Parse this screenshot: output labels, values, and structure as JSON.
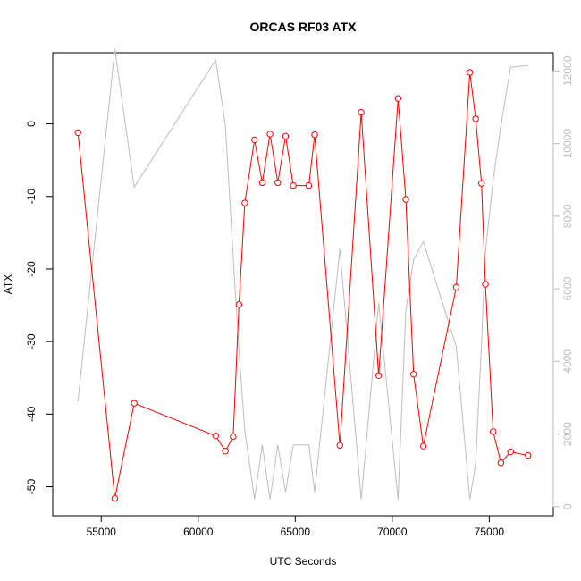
{
  "chart_data": {
    "type": "line",
    "title": "ORCAS RF03 ATX",
    "xlabel": "UTC Seconds",
    "ylabel": "ATX",
    "xlim": [
      52500,
      78300
    ],
    "ylim": [
      -54,
      9.8
    ],
    "y2lim": [
      -250,
      12500
    ],
    "xticks": [
      55000,
      60000,
      65000,
      70000,
      75000
    ],
    "yticks": [
      0,
      -10,
      -20,
      -30,
      -40,
      -50
    ],
    "y2ticks": [
      0,
      2000,
      4000,
      6000,
      8000,
      10000,
      12000
    ],
    "xtick_labels": [
      "55000",
      "60000",
      "65000",
      "70000",
      "75000"
    ],
    "ytick_labels": [
      "0",
      "-10",
      "-20",
      "-30",
      "-40",
      "-50"
    ],
    "y2tick_labels": [
      "0",
      "2000",
      "4000",
      "6000",
      "8000",
      "10000",
      "12000"
    ],
    "series": [
      {
        "axis": "left",
        "color": "#ff0000",
        "markers": true,
        "points": [
          [
            53800,
            -1.2
          ],
          [
            55700,
            -51.6
          ],
          [
            56700,
            -38.5
          ],
          [
            60900,
            -43.0
          ],
          [
            61400,
            -45.1
          ],
          [
            61800,
            -43.1
          ],
          [
            62100,
            -24.9
          ],
          [
            62400,
            -10.9
          ],
          [
            62900,
            -2.2
          ],
          [
            63300,
            -8.1
          ],
          [
            63700,
            -1.4
          ],
          [
            64100,
            -8.1
          ],
          [
            64500,
            -1.7
          ],
          [
            64900,
            -8.5
          ],
          [
            65700,
            -8.5
          ],
          [
            66000,
            -1.5
          ],
          [
            67300,
            -44.3
          ],
          [
            68400,
            1.6
          ],
          [
            69300,
            -34.7
          ],
          [
            70300,
            3.5
          ],
          [
            70700,
            -10.4
          ],
          [
            71100,
            -34.5
          ],
          [
            71600,
            -44.4
          ],
          [
            73300,
            -22.5
          ],
          [
            74000,
            7.1
          ],
          [
            74300,
            0.7
          ],
          [
            74600,
            -8.2
          ],
          [
            74800,
            -22.1
          ],
          [
            75200,
            -42.4
          ],
          [
            75600,
            -46.7
          ],
          [
            76100,
            -45.2
          ],
          [
            77000,
            -45.7
          ]
        ]
      },
      {
        "axis": "right",
        "color": "#bebebe",
        "markers": false,
        "points": [
          [
            53800,
            2900
          ],
          [
            55700,
            12600
          ],
          [
            56700,
            8800
          ],
          [
            60900,
            12300
          ],
          [
            61400,
            10500
          ],
          [
            61800,
            6900
          ],
          [
            62100,
            4300
          ],
          [
            62400,
            2100
          ],
          [
            62900,
            200
          ],
          [
            63300,
            1700
          ],
          [
            63700,
            200
          ],
          [
            64100,
            1700
          ],
          [
            64500,
            400
          ],
          [
            64900,
            1700
          ],
          [
            65700,
            1700
          ],
          [
            66000,
            400
          ],
          [
            67300,
            7100
          ],
          [
            68400,
            200
          ],
          [
            69300,
            5600
          ],
          [
            70300,
            200
          ],
          [
            70700,
            5400
          ],
          [
            71100,
            6800
          ],
          [
            71600,
            7300
          ],
          [
            73300,
            4400
          ],
          [
            74000,
            200
          ],
          [
            74300,
            1200
          ],
          [
            74600,
            4500
          ],
          [
            74800,
            7000
          ],
          [
            75200,
            9000
          ],
          [
            75600,
            10500
          ],
          [
            76100,
            12100
          ],
          [
            77000,
            12150
          ]
        ]
      }
    ]
  }
}
